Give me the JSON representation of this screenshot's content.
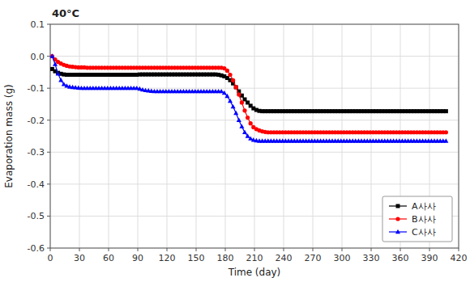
{
  "chart_data": {
    "type": "line",
    "title": "40°C",
    "x_label": "Time (day)",
    "y_label": "Evaporation mass (g)",
    "xlim": [
      0,
      420
    ],
    "ylim": [
      -0.6,
      0.1
    ],
    "xticks": [
      0,
      30,
      60,
      90,
      120,
      150,
      180,
      210,
      240,
      270,
      300,
      330,
      360,
      390,
      420
    ],
    "yticks": [
      0.1,
      {
        "value": 0,
        "label": "0.0"
      },
      -0.1,
      -0.2,
      -0.3,
      -0.4,
      -0.5,
      -0.6
    ],
    "grid": true,
    "legend": "lower right",
    "x": [
      2,
      5,
      8,
      11,
      14,
      17,
      20,
      23,
      26,
      29,
      32,
      35,
      38,
      41,
      44,
      47,
      50,
      53,
      56,
      59,
      62,
      65,
      68,
      71,
      74,
      77,
      80,
      83,
      86,
      89,
      92,
      95,
      98,
      101,
      104,
      107,
      110,
      113,
      116,
      119,
      122,
      125,
      128,
      131,
      134,
      137,
      140,
      143,
      146,
      149,
      152,
      155,
      158,
      161,
      164,
      167,
      170,
      173,
      176,
      179,
      182,
      185,
      188,
      191,
      194,
      197,
      200,
      203,
      206,
      209,
      212,
      215,
      218,
      221,
      224,
      227,
      230,
      233,
      236,
      239,
      242,
      245,
      248,
      251,
      254,
      257,
      260,
      263,
      266,
      269,
      272,
      275,
      278,
      281,
      284,
      287,
      290,
      293,
      296,
      299,
      302,
      305,
      308,
      311,
      314,
      317,
      320,
      323,
      326,
      329,
      332,
      335,
      338,
      341,
      344,
      347,
      350,
      353,
      356,
      359,
      362,
      365,
      368,
      371,
      374,
      377,
      380,
      383,
      386,
      389,
      392,
      395,
      398,
      401,
      404,
      407
    ],
    "series": [
      {
        "name": "A사사",
        "color": "black",
        "marker": "square",
        "values": [
          -0.04,
          -0.047,
          -0.052,
          -0.055,
          -0.057,
          -0.058,
          -0.058,
          -0.058,
          -0.058,
          -0.058,
          -0.058,
          -0.058,
          -0.058,
          -0.058,
          -0.058,
          -0.058,
          -0.058,
          -0.058,
          -0.058,
          -0.058,
          -0.058,
          -0.058,
          -0.058,
          -0.058,
          -0.058,
          -0.058,
          -0.058,
          -0.058,
          -0.058,
          -0.058,
          -0.057,
          -0.057,
          -0.057,
          -0.057,
          -0.057,
          -0.057,
          -0.057,
          -0.057,
          -0.057,
          -0.057,
          -0.057,
          -0.057,
          -0.057,
          -0.057,
          -0.057,
          -0.057,
          -0.057,
          -0.057,
          -0.057,
          -0.057,
          -0.057,
          -0.057,
          -0.057,
          -0.057,
          -0.057,
          -0.057,
          -0.057,
          -0.058,
          -0.06,
          -0.063,
          -0.068,
          -0.075,
          -0.085,
          -0.097,
          -0.11,
          -0.123,
          -0.135,
          -0.145,
          -0.155,
          -0.163,
          -0.168,
          -0.171,
          -0.172,
          -0.172,
          -0.172,
          -0.172,
          -0.172,
          -0.172,
          -0.172,
          -0.172,
          -0.172,
          -0.172,
          -0.172,
          -0.172,
          -0.172,
          -0.172,
          -0.172,
          -0.172,
          -0.172,
          -0.172,
          -0.172,
          -0.172,
          -0.172,
          -0.172,
          -0.172,
          -0.172,
          -0.172,
          -0.172,
          -0.172,
          -0.172,
          -0.172,
          -0.172,
          -0.172,
          -0.172,
          -0.172,
          -0.172,
          -0.172,
          -0.172,
          -0.172,
          -0.172,
          -0.172,
          -0.172,
          -0.172,
          -0.172,
          -0.172,
          -0.172,
          -0.172,
          -0.172,
          -0.172,
          -0.172,
          -0.172,
          -0.172,
          -0.172,
          -0.172,
          -0.172,
          -0.172,
          -0.172,
          -0.172,
          -0.172,
          -0.172,
          -0.172,
          -0.172,
          -0.172,
          -0.172,
          -0.172,
          -0.172
        ]
      },
      {
        "name": "B사사",
        "color": "red",
        "marker": "circle",
        "values": [
          0.0,
          -0.01,
          -0.018,
          -0.023,
          -0.027,
          -0.03,
          -0.032,
          -0.033,
          -0.034,
          -0.035,
          -0.035,
          -0.035,
          -0.036,
          -0.036,
          -0.036,
          -0.036,
          -0.036,
          -0.036,
          -0.036,
          -0.036,
          -0.036,
          -0.036,
          -0.036,
          -0.036,
          -0.036,
          -0.036,
          -0.036,
          -0.036,
          -0.036,
          -0.036,
          -0.036,
          -0.036,
          -0.036,
          -0.036,
          -0.036,
          -0.036,
          -0.036,
          -0.036,
          -0.036,
          -0.036,
          -0.036,
          -0.036,
          -0.036,
          -0.036,
          -0.036,
          -0.036,
          -0.036,
          -0.036,
          -0.036,
          -0.036,
          -0.036,
          -0.036,
          -0.036,
          -0.036,
          -0.036,
          -0.036,
          -0.036,
          -0.036,
          -0.036,
          -0.038,
          -0.045,
          -0.058,
          -0.075,
          -0.097,
          -0.12,
          -0.145,
          -0.17,
          -0.192,
          -0.21,
          -0.222,
          -0.228,
          -0.232,
          -0.235,
          -0.237,
          -0.238,
          -0.238,
          -0.238,
          -0.238,
          -0.238,
          -0.238,
          -0.238,
          -0.238,
          -0.238,
          -0.238,
          -0.238,
          -0.238,
          -0.238,
          -0.238,
          -0.238,
          -0.238,
          -0.238,
          -0.238,
          -0.238,
          -0.238,
          -0.238,
          -0.238,
          -0.238,
          -0.238,
          -0.238,
          -0.238,
          -0.238,
          -0.238,
          -0.238,
          -0.238,
          -0.238,
          -0.238,
          -0.238,
          -0.238,
          -0.238,
          -0.238,
          -0.238,
          -0.238,
          -0.238,
          -0.238,
          -0.238,
          -0.238,
          -0.238,
          -0.238,
          -0.238,
          -0.238,
          -0.238,
          -0.238,
          -0.238,
          -0.238,
          -0.238,
          -0.238,
          -0.238,
          -0.238,
          -0.238,
          -0.238,
          -0.238,
          -0.238,
          -0.238,
          -0.238,
          -0.238,
          -0.238
        ]
      },
      {
        "name": "C사사",
        "color": "blue",
        "marker": "triangle",
        "values": [
          0.0,
          -0.025,
          -0.055,
          -0.075,
          -0.088,
          -0.093,
          -0.096,
          -0.097,
          -0.098,
          -0.099,
          -0.1,
          -0.1,
          -0.1,
          -0.1,
          -0.1,
          -0.1,
          -0.1,
          -0.1,
          -0.1,
          -0.1,
          -0.1,
          -0.1,
          -0.1,
          -0.1,
          -0.1,
          -0.1,
          -0.1,
          -0.1,
          -0.1,
          -0.1,
          -0.102,
          -0.105,
          -0.107,
          -0.108,
          -0.109,
          -0.11,
          -0.11,
          -0.11,
          -0.11,
          -0.11,
          -0.11,
          -0.11,
          -0.11,
          -0.11,
          -0.11,
          -0.11,
          -0.11,
          -0.11,
          -0.11,
          -0.11,
          -0.11,
          -0.11,
          -0.11,
          -0.11,
          -0.11,
          -0.11,
          -0.11,
          -0.11,
          -0.11,
          -0.115,
          -0.125,
          -0.14,
          -0.158,
          -0.178,
          -0.2,
          -0.22,
          -0.238,
          -0.25,
          -0.258,
          -0.262,
          -0.264,
          -0.265,
          -0.265,
          -0.265,
          -0.265,
          -0.265,
          -0.265,
          -0.265,
          -0.265,
          -0.265,
          -0.265,
          -0.265,
          -0.265,
          -0.265,
          -0.265,
          -0.265,
          -0.265,
          -0.265,
          -0.265,
          -0.265,
          -0.265,
          -0.265,
          -0.265,
          -0.265,
          -0.265,
          -0.265,
          -0.265,
          -0.265,
          -0.265,
          -0.265,
          -0.265,
          -0.265,
          -0.265,
          -0.265,
          -0.265,
          -0.265,
          -0.265,
          -0.265,
          -0.265,
          -0.265,
          -0.265,
          -0.265,
          -0.265,
          -0.265,
          -0.265,
          -0.265,
          -0.265,
          -0.265,
          -0.265,
          -0.265,
          -0.265,
          -0.265,
          -0.265,
          -0.265,
          -0.265,
          -0.265,
          -0.265,
          -0.265,
          -0.265,
          -0.265,
          -0.265,
          -0.265,
          -0.265,
          -0.265,
          -0.265,
          -0.265
        ]
      }
    ]
  }
}
